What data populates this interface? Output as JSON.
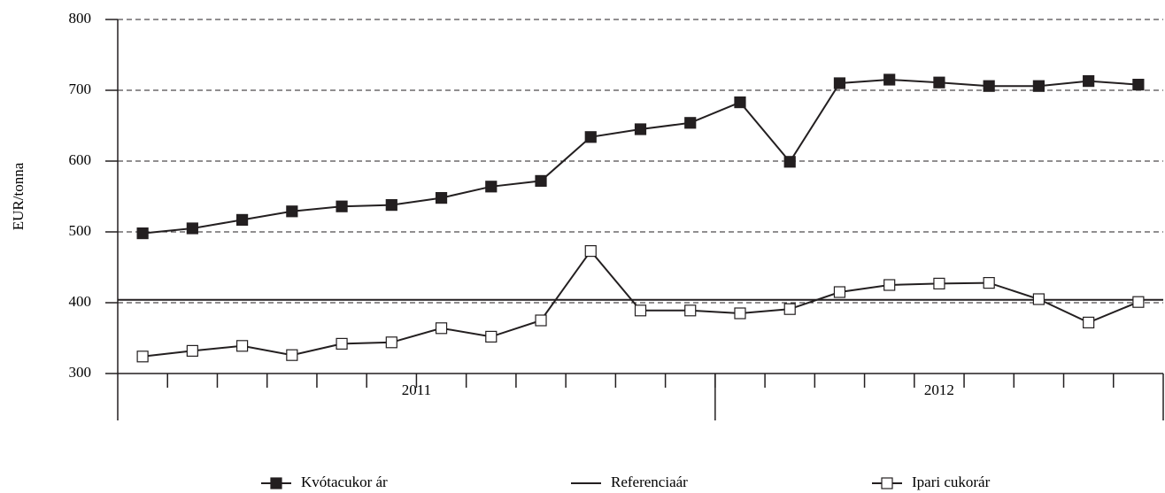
{
  "chart_data": {
    "type": "line",
    "y_label": "EUR/tonna",
    "categories": [
      null,
      null,
      null,
      null,
      null,
      null,
      null,
      null,
      null,
      null,
      null,
      null,
      null,
      null,
      null,
      null,
      null,
      null,
      null,
      null,
      null
    ],
    "x_groups": [
      {
        "label": "2011",
        "count": 12
      },
      {
        "label": "2012",
        "count": 9
      }
    ],
    "series": [
      {
        "name": "Kvótacukor ár",
        "color": "#231f20",
        "marker": "filled-square",
        "values": [
          498,
          505,
          517,
          529,
          536,
          538,
          548,
          564,
          572,
          634,
          645,
          654,
          683,
          599,
          710,
          715,
          711,
          706,
          706,
          713,
          708
        ]
      },
      {
        "name": "Ipari cukorár",
        "color": "#231f20",
        "marker": "open-square",
        "values": [
          324,
          332,
          339,
          326,
          342,
          344,
          364,
          352,
          375,
          473,
          389,
          389,
          385,
          391,
          415,
          425,
          427,
          428,
          405,
          372,
          401
        ]
      }
    ],
    "reference_lines": [
      {
        "name": "Referenciaár",
        "value": 404,
        "color": "#231f20"
      }
    ],
    "ylim": [
      300,
      800
    ],
    "yticks": [
      300,
      400,
      500,
      600,
      700,
      800
    ],
    "grid": true
  }
}
